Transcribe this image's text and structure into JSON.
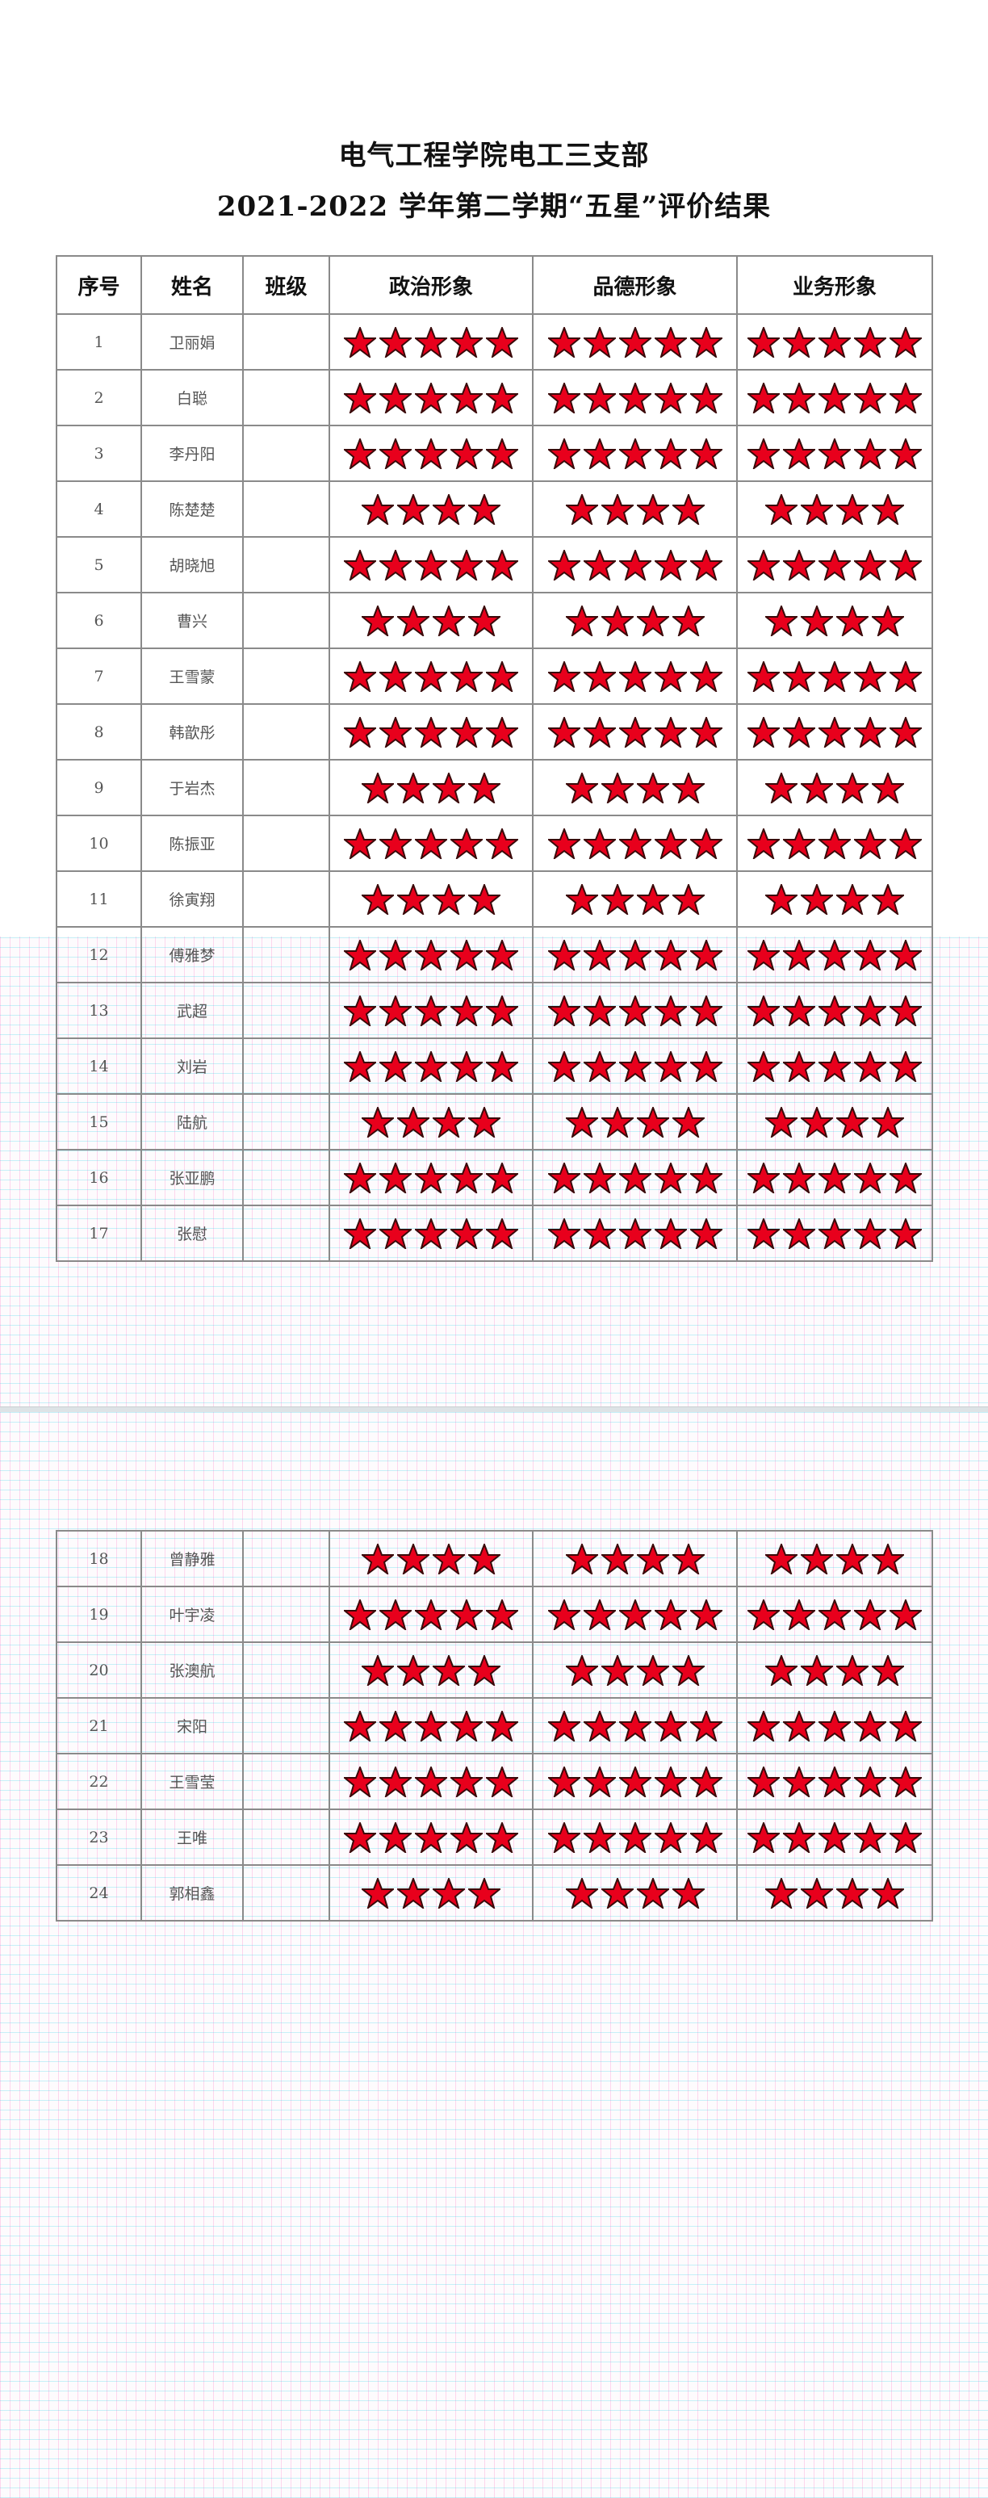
{
  "title_line1": "电气工程学院电工三支部",
  "title_line2": "2021-2022 学年第二学期“五星”评价结果",
  "columns": [
    "序号",
    "姓名",
    "班级",
    "政治形象",
    "品德形象",
    "业务形象"
  ],
  "star_icon": "red-star-icon",
  "colors": {
    "star_fill": "#e8001c",
    "star_stroke": "#3a0a0a"
  },
  "rows": [
    {
      "no": "1",
      "name": "卫丽娟",
      "class": "",
      "stars": [
        5,
        5,
        5
      ]
    },
    {
      "no": "2",
      "name": "白聪",
      "class": "",
      "stars": [
        5,
        5,
        5
      ]
    },
    {
      "no": "3",
      "name": "李丹阳",
      "class": "",
      "stars": [
        5,
        5,
        5
      ]
    },
    {
      "no": "4",
      "name": "陈楚楚",
      "class": "",
      "stars": [
        4,
        4,
        4
      ]
    },
    {
      "no": "5",
      "name": "胡晓旭",
      "class": "",
      "stars": [
        5,
        5,
        5
      ]
    },
    {
      "no": "6",
      "name": "曹兴",
      "class": "",
      "stars": [
        4,
        4,
        4
      ]
    },
    {
      "no": "7",
      "name": "王雪蒙",
      "class": "",
      "stars": [
        5,
        5,
        5
      ]
    },
    {
      "no": "8",
      "name": "韩歆彤",
      "class": "",
      "stars": [
        5,
        5,
        5
      ]
    },
    {
      "no": "9",
      "name": "于岩杰",
      "class": "",
      "stars": [
        4,
        4,
        4
      ]
    },
    {
      "no": "10",
      "name": "陈振亚",
      "class": "",
      "stars": [
        5,
        5,
        5
      ]
    },
    {
      "no": "11",
      "name": "徐寅翔",
      "class": "",
      "stars": [
        4,
        4,
        4
      ]
    },
    {
      "no": "12",
      "name": "傅雅梦",
      "class": "",
      "stars": [
        5,
        5,
        5
      ]
    },
    {
      "no": "13",
      "name": "武超",
      "class": "",
      "stars": [
        5,
        5,
        5
      ]
    },
    {
      "no": "14",
      "name": "刘岩",
      "class": "",
      "stars": [
        5,
        5,
        5
      ]
    },
    {
      "no": "15",
      "name": "陆航",
      "class": "",
      "stars": [
        4,
        4,
        4
      ]
    },
    {
      "no": "16",
      "name": "张亚鹏",
      "class": "",
      "stars": [
        5,
        5,
        5
      ]
    },
    {
      "no": "17",
      "name": "张慰",
      "class": "",
      "stars": [
        5,
        5,
        5
      ]
    },
    {
      "no": "18",
      "name": "曾静雅",
      "class": "",
      "stars": [
        4,
        4,
        4
      ]
    },
    {
      "no": "19",
      "name": "叶宇凌",
      "class": "",
      "stars": [
        5,
        5,
        5
      ]
    },
    {
      "no": "20",
      "name": "张澳航",
      "class": "",
      "stars": [
        4,
        4,
        4
      ]
    },
    {
      "no": "21",
      "name": "宋阳",
      "class": "",
      "stars": [
        5,
        5,
        5
      ]
    },
    {
      "no": "22",
      "name": "王雪莹",
      "class": "",
      "stars": [
        5,
        5,
        5
      ]
    },
    {
      "no": "23",
      "name": "王唯",
      "class": "",
      "stars": [
        5,
        5,
        5
      ]
    },
    {
      "no": "24",
      "name": "郭相鑫",
      "class": "",
      "stars": [
        4,
        4,
        4
      ]
    }
  ]
}
